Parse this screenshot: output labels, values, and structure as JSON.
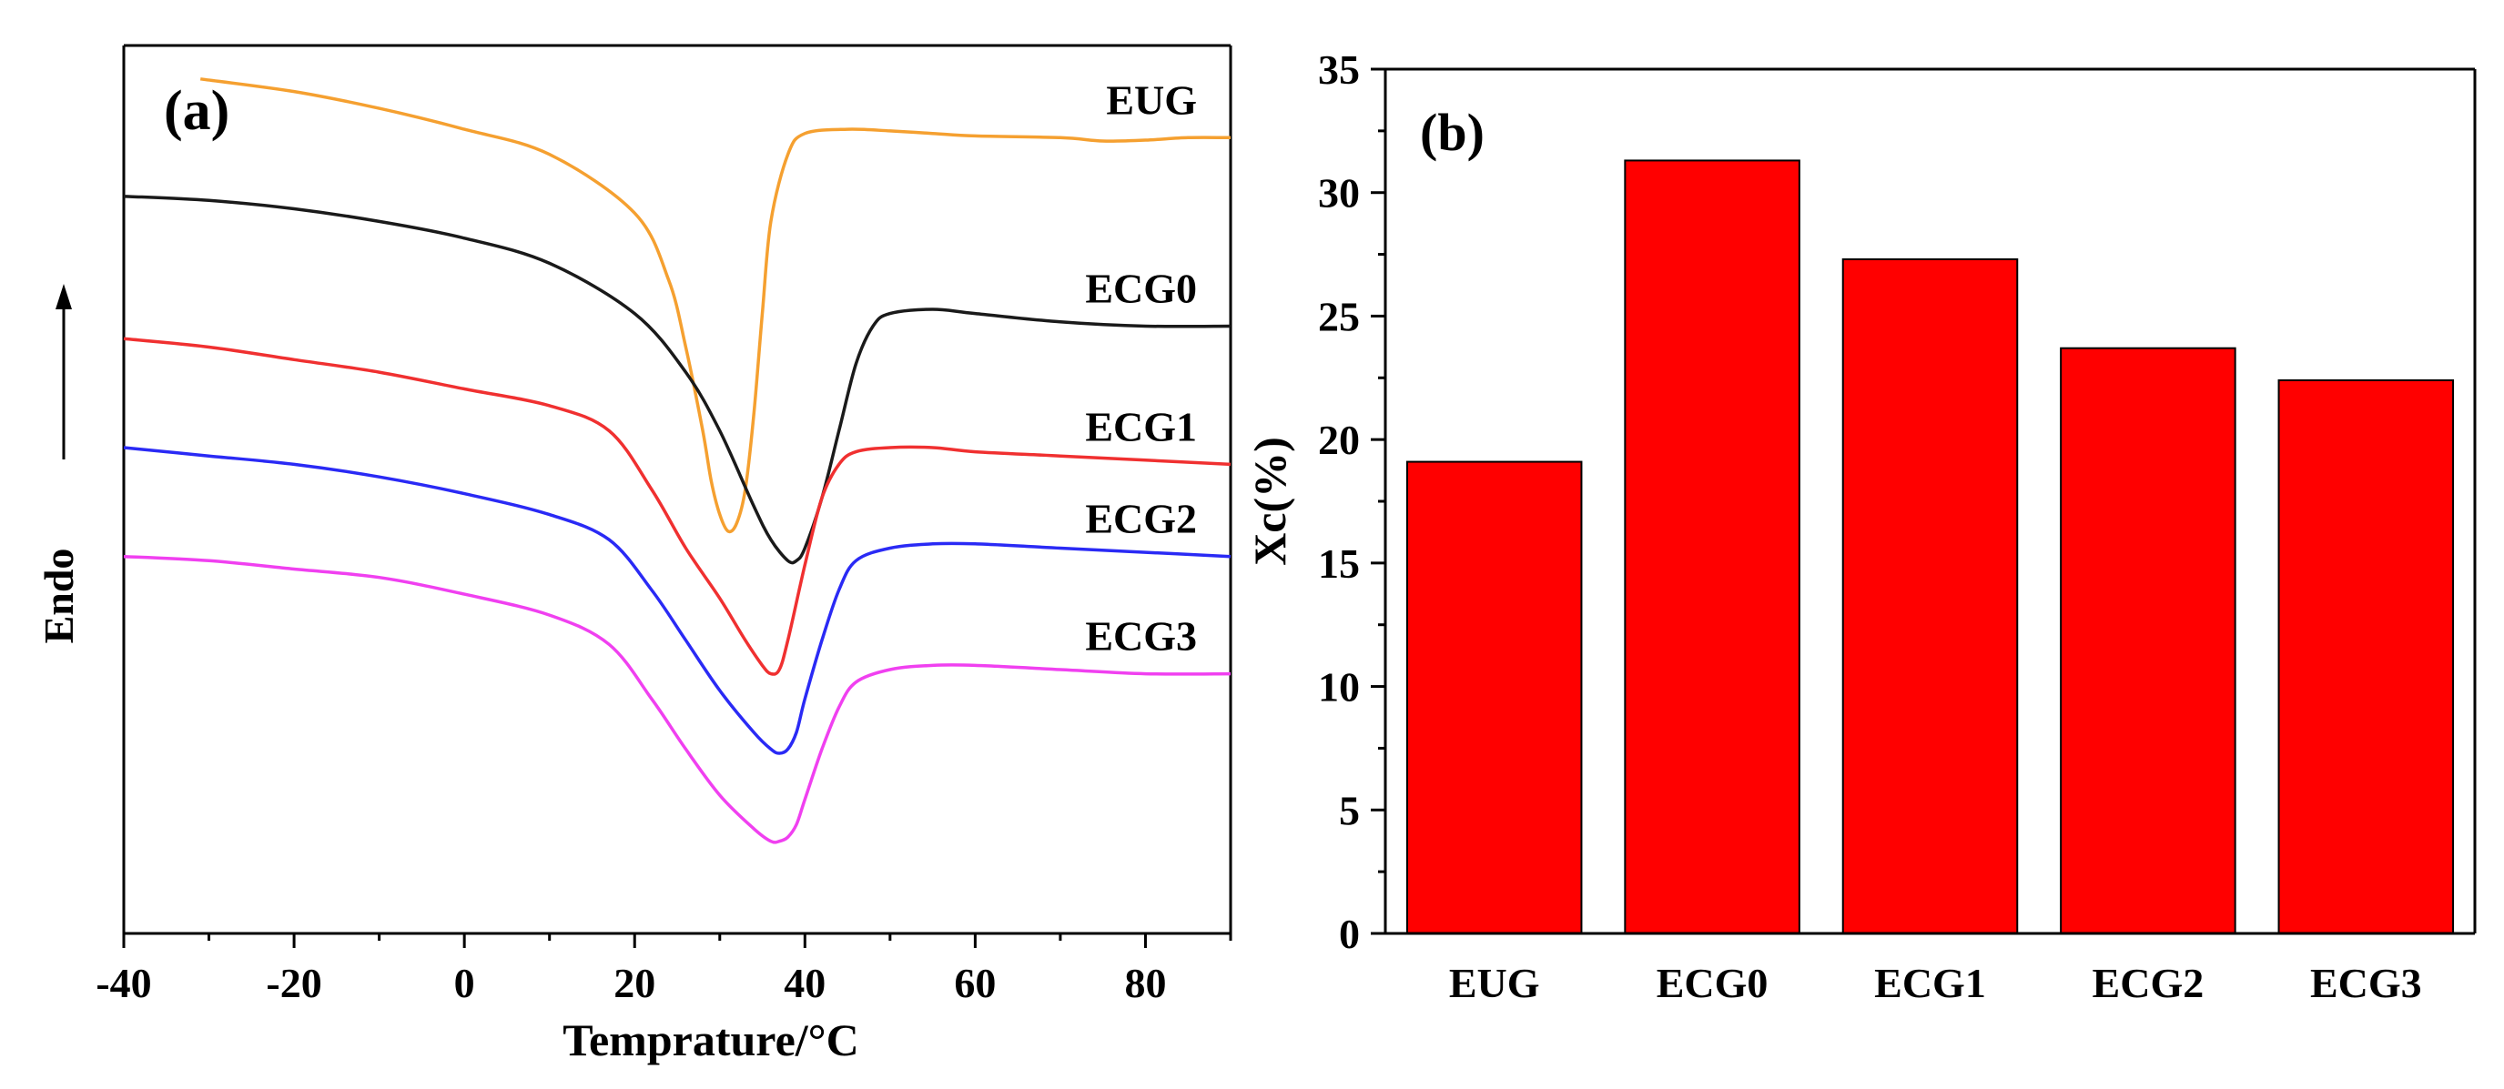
{
  "chart_data": [
    {
      "type": "line",
      "panel_label": "(a)",
      "xlabel": "Temprature/°C",
      "ylabel": "Endo",
      "xlim": [
        -40,
        90
      ],
      "x_ticks": [
        "-40",
        "-20",
        "0",
        "20",
        "40",
        "60",
        "80"
      ],
      "x_tick_values": [
        -40,
        -20,
        0,
        20,
        40,
        60,
        80
      ],
      "y_ticks_shown": false,
      "ylim": [
        -10.2,
        0.4
      ],
      "arrow": "up",
      "series": [
        {
          "name": "EUG",
          "color": "#f5a030",
          "x": [
            -31,
            -20,
            -10,
            0,
            10,
            20,
            24,
            26,
            28,
            29,
            30,
            31,
            32,
            33,
            34,
            35,
            36,
            38,
            40,
            45,
            50,
            55,
            60,
            70,
            75,
            80,
            85,
            90
          ],
          "y": [
            0,
            -0.15,
            -0.35,
            -0.6,
            -0.9,
            -1.6,
            -2.4,
            -3.2,
            -4.2,
            -4.8,
            -5.2,
            -5.4,
            -5.3,
            -4.9,
            -4.0,
            -2.8,
            -1.7,
            -0.9,
            -0.65,
            -0.6,
            -0.62,
            -0.65,
            -0.68,
            -0.7,
            -0.74,
            -0.73,
            -0.7,
            -0.7
          ]
        },
        {
          "name": "ECG0",
          "color": "#1a1a1a",
          "x": [
            -40,
            -30,
            -20,
            -10,
            0,
            10,
            20,
            26,
            30,
            34,
            36,
            38,
            39,
            40,
            42,
            44,
            46,
            48,
            50,
            55,
            60,
            70,
            80,
            90
          ],
          "y": [
            -1.4,
            -1.45,
            -1.55,
            -1.7,
            -1.9,
            -2.2,
            -2.8,
            -3.5,
            -4.2,
            -5.1,
            -5.5,
            -5.75,
            -5.75,
            -5.6,
            -5.0,
            -4.2,
            -3.4,
            -2.95,
            -2.8,
            -2.75,
            -2.8,
            -2.9,
            -2.95,
            -2.95
          ]
        },
        {
          "name": "ECG1",
          "color": "#f03030",
          "x": [
            -40,
            -30,
            -20,
            -10,
            0,
            10,
            17,
            22,
            26,
            30,
            33,
            35,
            36,
            37,
            38,
            40,
            42,
            44,
            46,
            50,
            55,
            60,
            70,
            80,
            90
          ],
          "y": [
            -3.1,
            -3.2,
            -3.35,
            -3.5,
            -3.7,
            -3.9,
            -4.2,
            -4.9,
            -5.6,
            -6.2,
            -6.7,
            -7.0,
            -7.1,
            -7.05,
            -6.7,
            -5.8,
            -5.0,
            -4.6,
            -4.45,
            -4.4,
            -4.4,
            -4.45,
            -4.5,
            -4.55,
            -4.6
          ]
        },
        {
          "name": "ECG2",
          "color": "#2a2af5",
          "x": [
            -40,
            -30,
            -20,
            -10,
            0,
            10,
            17,
            22,
            26,
            30,
            34,
            36,
            37,
            38,
            39,
            40,
            42,
            44,
            46,
            50,
            55,
            60,
            70,
            80,
            90
          ],
          "y": [
            -4.4,
            -4.5,
            -4.6,
            -4.75,
            -4.95,
            -5.2,
            -5.5,
            -6.1,
            -6.7,
            -7.3,
            -7.8,
            -8.0,
            -8.05,
            -8.0,
            -7.8,
            -7.4,
            -6.7,
            -6.1,
            -5.75,
            -5.6,
            -5.55,
            -5.55,
            -5.6,
            -5.65,
            -5.7
          ]
        },
        {
          "name": "ECG3",
          "color": "#f040f0",
          "x": [
            -40,
            -30,
            -20,
            -10,
            0,
            10,
            17,
            22,
            26,
            30,
            34,
            36,
            37,
            38,
            39,
            40,
            42,
            44,
            46,
            50,
            55,
            60,
            70,
            80,
            90
          ],
          "y": [
            -5.7,
            -5.75,
            -5.85,
            -5.95,
            -6.15,
            -6.4,
            -6.75,
            -7.4,
            -8.0,
            -8.55,
            -8.95,
            -9.1,
            -9.1,
            -9.05,
            -8.9,
            -8.6,
            -8.0,
            -7.5,
            -7.2,
            -7.05,
            -7.0,
            -7.0,
            -7.05,
            -7.1,
            -7.1
          ]
        }
      ],
      "curve_labels": [
        "EUG",
        "ECG0",
        "ECG1",
        "ECG2",
        "ECG3"
      ]
    },
    {
      "type": "bar",
      "panel_label": "(b)",
      "categories": [
        "EUG",
        "ECG0",
        "ECG1",
        "ECG2",
        "ECG3"
      ],
      "values": [
        19.1,
        31.3,
        27.3,
        23.7,
        22.4
      ],
      "xlabel": "",
      "ylabel": "Xc(%)",
      "ylim": [
        0,
        35
      ],
      "y_ticks": [
        "0",
        "5",
        "10",
        "15",
        "20",
        "25",
        "30",
        "35"
      ],
      "y_tick_values": [
        0,
        5,
        10,
        15,
        20,
        25,
        30,
        35
      ],
      "bar_color": "#ff0000"
    }
  ]
}
